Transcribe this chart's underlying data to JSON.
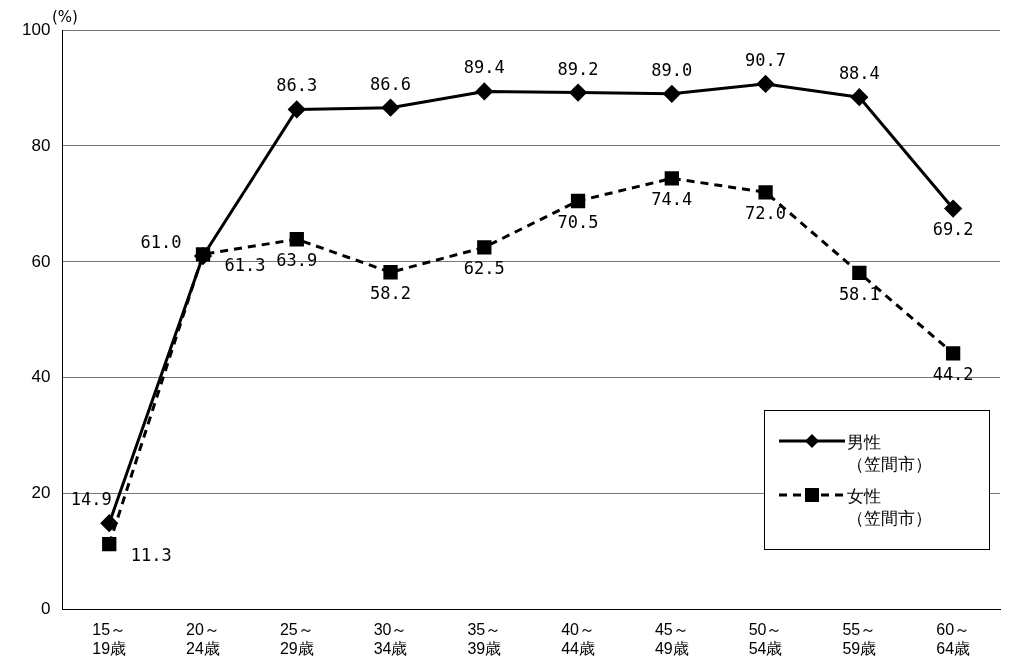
{
  "chart_data": {
    "type": "line",
    "ylabel": "(%)",
    "categories": [
      "15～\n19歳",
      "20～\n24歳",
      "25～\n29歳",
      "30～\n34歳",
      "35～\n39歳",
      "40～\n44歳",
      "45～\n49歳",
      "50～\n54歳",
      "55～\n59歳",
      "60～\n64歳"
    ],
    "series": [
      {
        "name": "男性（笠間市）",
        "color": "#000000",
        "marker": "diamond",
        "line_style": "solid",
        "values": [
          14.9,
          61.0,
          86.3,
          86.6,
          89.4,
          89.2,
          89.0,
          90.7,
          88.4,
          69.2
        ],
        "value_labels": [
          "14.9",
          "61.0",
          "86.3",
          "86.6",
          "89.4",
          "89.2",
          "89.0",
          "90.7",
          "88.4",
          "69.2"
        ]
      },
      {
        "name": "女性（笠間市）",
        "color": "#000000",
        "marker": "square",
        "line_style": "dashed",
        "values": [
          11.3,
          61.3,
          63.9,
          58.2,
          62.5,
          70.5,
          74.4,
          72.0,
          58.1,
          44.2
        ],
        "value_labels": [
          "11.3",
          "61.3",
          "63.9",
          "58.2",
          "62.5",
          "70.5",
          "74.4",
          "72.0",
          "58.1",
          "44.2"
        ]
      }
    ],
    "ylim": [
      0,
      100
    ],
    "yticks": [
      0,
      20,
      40,
      60,
      80,
      100
    ],
    "grid": "y",
    "legend": "bottom right"
  }
}
